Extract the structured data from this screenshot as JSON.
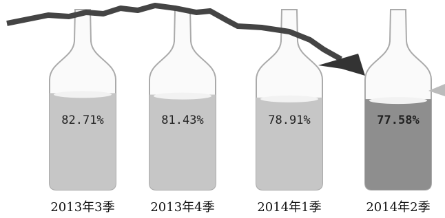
{
  "chart_data": {
    "type": "bottle",
    "categories": [
      "2013年3季",
      "2013年4季",
      "2014年1季",
      "2014年2季"
    ],
    "values": [
      82.71,
      81.43,
      78.91,
      77.58
    ],
    "value_labels": [
      "82.71%",
      "81.43%",
      "78.91%",
      "77.58%"
    ],
    "colors": [
      "#c6c6c6",
      "#c6c6c6",
      "#c6c6c6",
      "#8e8e8e"
    ]
  }
}
